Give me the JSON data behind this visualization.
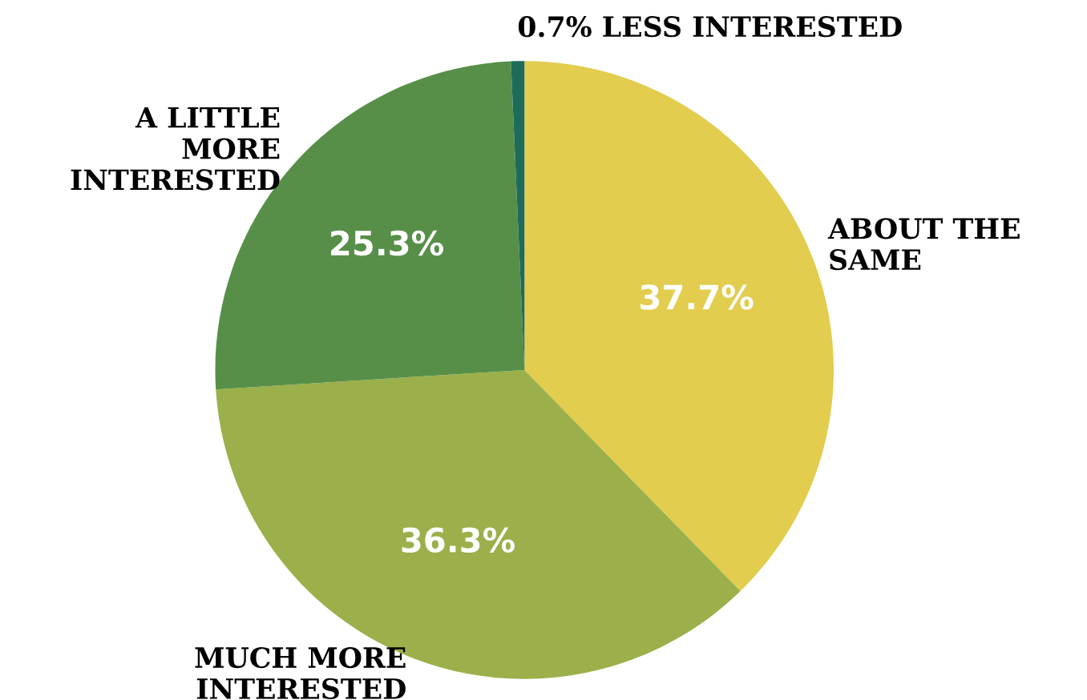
{
  "chart_data": {
    "type": "pie",
    "categories": [
      "ABOUT THE\nSAME",
      "MUCH MORE\nINTERESTED",
      "A LITTLE\nMORE\nINTERESTED",
      "0.7% LESS INTERESTED"
    ],
    "values": [
      37.7,
      36.3,
      25.3,
      0.7
    ],
    "value_labels": [
      "37.7%",
      "36.3%",
      "25.3%",
      null
    ],
    "colors": [
      "#e2cd4f",
      "#9bb04a",
      "#578f48",
      "#1f6b5a"
    ]
  }
}
